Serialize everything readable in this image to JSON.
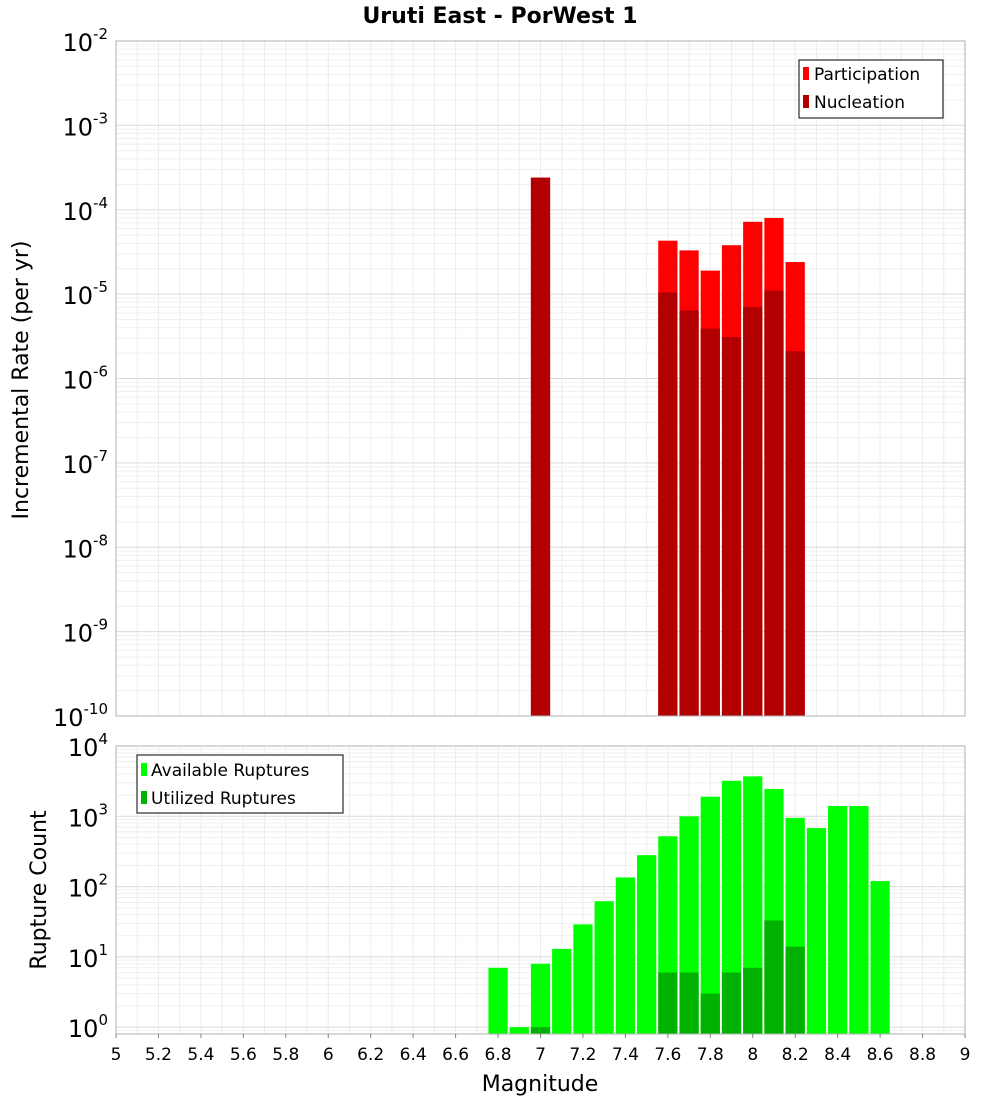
{
  "title": "Uruti East - PorWest 1",
  "colors": {
    "participation": "#ff0000",
    "nucleation": "#b20000",
    "available": "#00ff00",
    "utilized": "#00b200"
  },
  "chart_data": [
    {
      "type": "bar",
      "title": "Uruti East - PorWest 1",
      "ylabel": "Incremental Rate (per yr)",
      "yscale": "log",
      "ylim": [
        1e-10,
        0.01
      ],
      "y_tick_exponents": [
        -2,
        -3,
        -4,
        -5,
        -6,
        -7,
        -8,
        -9,
        -10
      ],
      "xlim": [
        5,
        9
      ],
      "bin_width": 0.1,
      "legend_position": "top-right",
      "x": [
        7.0,
        7.6,
        7.7,
        7.8,
        7.9,
        8.0,
        8.1,
        8.2
      ],
      "series": [
        {
          "name": "Participation",
          "values": [
            0.00024,
            4.3e-05,
            3.3e-05,
            1.9e-05,
            3.8e-05,
            7.2e-05,
            8e-05,
            2.4e-05
          ]
        },
        {
          "name": "Nucleation",
          "values": [
            0.00024,
            1.05e-05,
            6.4e-06,
            3.9e-06,
            3.1e-06,
            7e-06,
            1.1e-05,
            2.1e-06
          ]
        }
      ]
    },
    {
      "type": "bar",
      "ylabel": "Rupture Count",
      "xlabel": "Magnitude",
      "yscale": "log",
      "ylim": [
        0.8,
        10000
      ],
      "y_tick_exponents": [
        4,
        3,
        2,
        1,
        0
      ],
      "xlim": [
        5,
        9
      ],
      "x_tick_labels": [
        "5",
        "5.2",
        "5.4",
        "5.6",
        "5.8",
        "6",
        "6.2",
        "6.4",
        "6.6",
        "6.8",
        "7",
        "7.2",
        "7.4",
        "7.6",
        "7.8",
        "8",
        "8.2",
        "8.4",
        "8.6",
        "8.8",
        "9"
      ],
      "bin_width": 0.1,
      "legend_position": "top-left",
      "series": [
        {
          "name": "Available Ruptures",
          "x": [
            6.8,
            6.9,
            7.0,
            7.1,
            7.2,
            7.3,
            7.4,
            7.5,
            7.6,
            7.7,
            7.8,
            7.9,
            8.0,
            8.1,
            8.2,
            8.3,
            8.4,
            8.5,
            8.6
          ],
          "values": [
            7,
            1,
            8,
            13,
            29,
            62,
            135,
            280,
            520,
            1000,
            1900,
            3200,
            3700,
            2450,
            950,
            680,
            1400,
            1400,
            120
          ]
        },
        {
          "name": "Utilized Ruptures",
          "x": [
            7.0,
            7.6,
            7.7,
            7.8,
            7.9,
            8.0,
            8.1,
            8.2
          ],
          "values": [
            1,
            6,
            6,
            3,
            6,
            7,
            33,
            14
          ]
        }
      ]
    }
  ]
}
